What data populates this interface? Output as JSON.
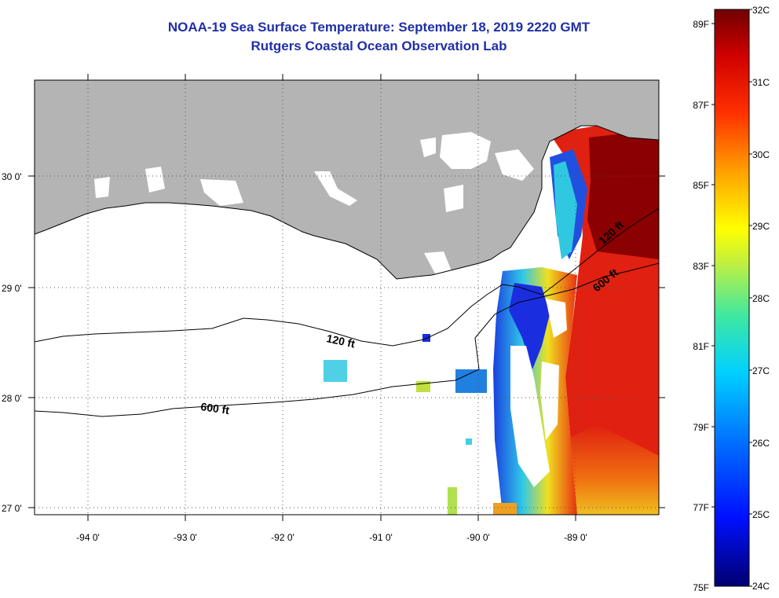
{
  "header": {
    "title": "NOAA-19 Sea Surface Temperature:  September 18, 2019 2220 GMT",
    "subtitle": "Rutgers Coastal Ocean Observation Lab"
  },
  "map": {
    "lon_labels": [
      "-94 0'",
      "-93 0'",
      "-92 0'",
      "-91 0'",
      "-90 0'",
      "-89 0'"
    ],
    "lat_labels": [
      "30 0'",
      "29 0'",
      "28 0'",
      "27 0'"
    ],
    "contour_labels": [
      "120 ft",
      "600 ft",
      "120 ft",
      "600 ft"
    ]
  },
  "colors": {
    "land": "#b4b4b4",
    "cloud": "#ffffff",
    "warm": "#e02010",
    "hot": "#8b0000",
    "cool": "#1a2ee0",
    "mid": "#20c0e0"
  },
  "colorbar": {
    "fahrenheit": [
      "89F",
      "87F",
      "85F",
      "83F",
      "81F",
      "79F",
      "77F",
      "75F"
    ],
    "celsius": [
      "32C",
      "31C",
      "30C",
      "29C",
      "28C",
      "27C",
      "26C",
      "25C",
      "24C"
    ]
  }
}
